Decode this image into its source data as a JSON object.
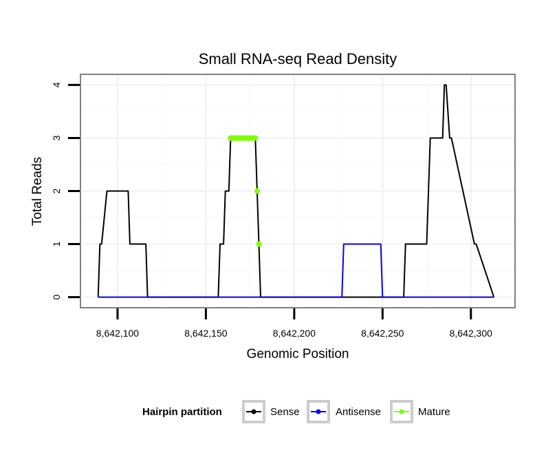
{
  "chart_data": {
    "type": "line",
    "title": "Small RNA-seq Read Density",
    "xlabel": "Genomic Position",
    "ylabel": "Total Reads",
    "xlim": [
      8642079,
      8642325
    ],
    "ylim": [
      -0.2,
      4.2
    ],
    "x_ticks": [
      8642100,
      8642150,
      8642200,
      8642250,
      8642300
    ],
    "x_tick_labels": [
      "8,642,100",
      "8,642,150",
      "8,642,200",
      "8,642,250",
      "8,642,300"
    ],
    "y_ticks": [
      0,
      1,
      2,
      3,
      4
    ],
    "y_tick_labels": [
      "0",
      "1",
      "2",
      "3",
      "4"
    ],
    "grid": true,
    "legend": {
      "title": "Hairpin partition",
      "position": "bottom",
      "entries": [
        "Sense",
        "Antisense",
        "Mature"
      ]
    },
    "series": [
      {
        "name": "Sense",
        "color": "#000000",
        "x": [
          8642089,
          8642090,
          8642091,
          8642094,
          8642095,
          8642106,
          8642107,
          8642116,
          8642117,
          8642122,
          8642157,
          8642158,
          8642160,
          8642161,
          8642163,
          8642164,
          8642178,
          8642179,
          8642180,
          8642181,
          8642262,
          8642263,
          8642275,
          8642276,
          8642277,
          8642284,
          8642285,
          8642286,
          8642288,
          8642289,
          8642302,
          8642303,
          8642313
        ],
        "y": [
          0,
          1,
          1,
          2,
          2,
          2,
          1,
          1,
          0,
          0,
          0,
          1,
          1,
          2,
          2,
          3,
          3,
          2,
          1,
          0,
          0,
          1,
          1,
          2,
          3,
          3,
          4,
          4,
          3,
          3,
          1,
          1,
          0
        ]
      },
      {
        "name": "Antisense",
        "color": "#0000ff",
        "x": [
          8642089,
          8642227,
          8642228,
          8642249,
          8642250,
          8642313
        ],
        "y": [
          0,
          0,
          1,
          1,
          0,
          0
        ]
      },
      {
        "name": "Mature",
        "color": "#7fff00",
        "x": [
          8642164,
          8642165,
          8642166,
          8642167,
          8642168,
          8642169,
          8642170,
          8642171,
          8642172,
          8642173,
          8642174,
          8642175,
          8642176,
          8642177,
          8642178,
          8642179,
          8642180
        ],
        "y": [
          3,
          3,
          3,
          3,
          3,
          3,
          3,
          3,
          3,
          3,
          3,
          3,
          3,
          3,
          3,
          2,
          1
        ]
      }
    ]
  }
}
